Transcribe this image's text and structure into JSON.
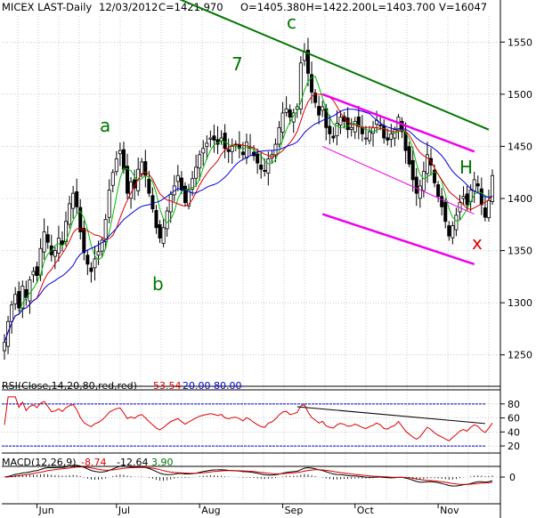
{
  "header": {
    "symbol": "MICEX LAST-Daily",
    "date": "12/03/2012",
    "close": "C=1421.970",
    "open": "O=1405.380",
    "high": "H=1422.200",
    "low": "L=1403.700",
    "volume": "V=16047"
  },
  "rsi_header": {
    "label": "RSI(Close,14,20,80,red,red)",
    "value": "53.54",
    "lower": "20.00",
    "upper": "80.00"
  },
  "macd_header": {
    "label": "MACD(12,26,9)",
    "macd": "-8.74",
    "signal": "-12.64",
    "hist": "3.90"
  },
  "colors": {
    "price": "#000000",
    "ma_fast": "#00bb00",
    "ma_mid": "#dd0000",
    "ma_slow": "#0000dd",
    "trend": "#007700",
    "channel": "#ee00ee",
    "annotation_green": "#007700",
    "annotation_red": "#dd0000",
    "rsi": "#dd0000",
    "rsi_upper": "#0000cc",
    "macd_signal": "#dd0000",
    "hist": "#000000"
  },
  "annotations": {
    "a": "a",
    "b": "b",
    "c": "c",
    "seven": "7",
    "h": "H",
    "x": "x"
  },
  "chart_data": {
    "type": "ohlc",
    "price_axis": {
      "ticks": [
        1250,
        1300,
        1350,
        1400,
        1450,
        1500,
        1550
      ],
      "ylim": [
        1225,
        1575
      ]
    },
    "rsi_axis": {
      "ticks": [
        20,
        40,
        60,
        80
      ],
      "ylim": [
        15,
        95
      ]
    },
    "macd_axis": {
      "ticks": [
        0
      ]
    },
    "months": [
      "Jun",
      "Jul",
      "Aug",
      "Sep",
      "Oct",
      "Nov"
    ],
    "closes": [
      1262,
      1282,
      1298,
      1308,
      1295,
      1316,
      1305,
      1322,
      1330,
      1326,
      1352,
      1368,
      1358,
      1346,
      1350,
      1362,
      1356,
      1378,
      1395,
      1405,
      1392,
      1368,
      1348,
      1337,
      1330,
      1342,
      1349,
      1360,
      1380,
      1408,
      1425,
      1438,
      1446,
      1428,
      1405,
      1416,
      1410,
      1428,
      1435,
      1422,
      1405,
      1390,
      1372,
      1362,
      1372,
      1388,
      1404,
      1412,
      1422,
      1408,
      1396,
      1408,
      1419,
      1430,
      1442,
      1448,
      1453,
      1458,
      1456,
      1452,
      1458,
      1448,
      1445,
      1450,
      1452,
      1448,
      1442,
      1454,
      1449,
      1441,
      1434,
      1428,
      1426,
      1438,
      1442,
      1452,
      1468,
      1482,
      1486,
      1478,
      1482,
      1488,
      1530,
      1541,
      1520,
      1502,
      1492,
      1480,
      1488,
      1468,
      1462,
      1458,
      1472,
      1478,
      1474,
      1466,
      1468,
      1474,
      1469,
      1462,
      1458,
      1464,
      1468,
      1475,
      1470,
      1458,
      1456,
      1462,
      1466,
      1478,
      1464,
      1446,
      1433,
      1418,
      1405,
      1412,
      1426,
      1442,
      1432,
      1415,
      1402,
      1392,
      1378,
      1364,
      1374,
      1384,
      1396,
      1402,
      1394,
      1408,
      1418,
      1412,
      1394,
      1382,
      1398,
      1422
    ],
    "rsi_ticks_labels": [
      "20",
      "40",
      "60",
      "80"
    ],
    "macd_ticks_labels": [
      "0"
    ],
    "trendline": [
      [
        0,
        1662
      ],
      [
        134,
        1466
      ]
    ],
    "channel_upper": [
      [
        88,
        1500
      ],
      [
        130,
        1445
      ]
    ],
    "channel_mid": [
      [
        88,
        1450
      ],
      [
        130,
        1385
      ]
    ],
    "channel_lower": [
      [
        88,
        1385
      ],
      [
        130,
        1337
      ]
    ],
    "rsi_trendline": [
      [
        81,
        76
      ],
      [
        133,
        52
      ]
    ]
  }
}
